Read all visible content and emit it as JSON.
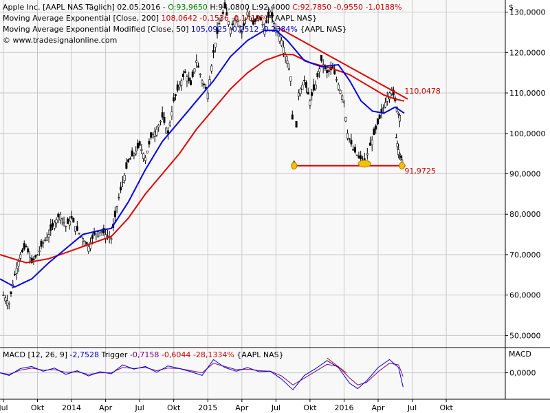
{
  "chart_data": [
    {
      "type": "candlestick",
      "legend": [
        {
          "text": "Apple Inc. [AAPL NAS  Täglich] 02.05.2016 - ",
          "color": "#000000",
          "parts": [
            {
              "text": "O:93,9650",
              "color": "#008000"
            },
            {
              "text": " H:94,0800 L:92,4000 ",
              "color": "#000000"
            },
            {
              "text": "C:92,7850 -0,9550 -1,0188%",
              "color": "#cc0000"
            }
          ]
        },
        {
          "text": "Moving Average Exponential [Close, 200] ",
          "color": "#000000",
          "parts": [
            {
              "text": "108,0642 -0,1536 -0,1419%",
              "color": "#cc0000"
            },
            {
              "text": " {AAPL NAS}",
              "color": "#000000"
            }
          ]
        },
        {
          "text": "Moving Average Exponential Modified [Close, 50] ",
          "color": "#000000",
          "parts": [
            {
              "text": "105,0925 -0,2512 -0,2384%",
              "color": "#0000cc"
            },
            {
              "text": " {AAPL NAS}",
              "color": "#000000"
            }
          ]
        },
        {
          "text": "© www.tradesignalonline.com",
          "color": "#000000",
          "parts": []
        }
      ],
      "currency_label": "$",
      "y_ticks": [
        "130,0000",
        "120,0000",
        "110,0000",
        "100,0000",
        "90,0000",
        "80,0000",
        "70,0000",
        "60,0000",
        "50,0000"
      ],
      "y_tick_values": [
        130,
        120,
        110,
        100,
        90,
        80,
        70,
        60,
        50
      ],
      "ylim": [
        47,
        133
      ],
      "x_ticks": [
        "Jul",
        "Okt",
        "2014",
        "Apr",
        "Jul",
        "Okt",
        "2015",
        "Apr",
        "Jul",
        "Okt",
        "2016",
        "Apr",
        "Jul",
        "Okt"
      ],
      "x_tick_values": [
        0,
        3,
        6,
        9,
        12,
        15,
        18,
        21,
        24,
        27,
        30,
        33,
        36,
        39
      ],
      "xlim": [
        -0.3,
        44.2
      ],
      "x_unit": "months since Jul 2013",
      "price_path": [
        [
          0,
          60
        ],
        [
          0.5,
          58
        ],
        [
          1,
          65
        ],
        [
          1.5,
          70
        ],
        [
          2,
          72
        ],
        [
          2.5,
          68
        ],
        [
          3,
          70
        ],
        [
          3.5,
          73
        ],
        [
          4,
          75
        ],
        [
          4.5,
          78
        ],
        [
          5,
          80
        ],
        [
          5.5,
          77
        ],
        [
          6,
          79
        ],
        [
          6.5,
          76
        ],
        [
          7,
          74
        ],
        [
          7.5,
          72
        ],
        [
          8,
          75
        ],
        [
          8.5,
          76
        ],
        [
          9,
          75
        ],
        [
          9.5,
          74
        ],
        [
          10,
          82
        ],
        [
          10.5,
          88
        ],
        [
          11,
          93
        ],
        [
          11.5,
          95
        ],
        [
          12,
          97
        ],
        [
          12.5,
          94
        ],
        [
          13,
          99
        ],
        [
          13.5,
          101
        ],
        [
          14,
          104
        ],
        [
          14.5,
          100
        ],
        [
          15,
          108
        ],
        [
          15.5,
          112
        ],
        [
          16,
          115
        ],
        [
          16.5,
          112
        ],
        [
          17,
          118
        ],
        [
          17.5,
          113
        ],
        [
          18,
          110
        ],
        [
          18.5,
          120
        ],
        [
          19,
          127
        ],
        [
          19.5,
          131
        ],
        [
          20,
          126
        ],
        [
          20.5,
          129
        ],
        [
          21,
          125
        ],
        [
          21.5,
          130
        ],
        [
          22,
          127
        ],
        [
          22.5,
          129
        ],
        [
          23,
          126
        ],
        [
          23.5,
          130
        ],
        [
          24,
          126
        ],
        [
          24.5,
          123
        ],
        [
          25,
          118
        ],
        [
          25.3,
          114
        ],
        [
          25.6,
          93
        ],
        [
          26,
          110
        ],
        [
          26.5,
          113
        ],
        [
          27,
          108
        ],
        [
          27.5,
          112
        ],
        [
          28,
          118
        ],
        [
          28.5,
          115
        ],
        [
          29,
          116
        ],
        [
          29.5,
          112
        ],
        [
          30,
          108
        ],
        [
          30.3,
          100
        ],
        [
          30.8,
          96
        ],
        [
          31.3,
          94
        ],
        [
          31.8,
          93
        ],
        [
          32.3,
          97
        ],
        [
          32.8,
          101
        ],
        [
          33.3,
          105
        ],
        [
          33.8,
          109
        ],
        [
          34.2,
          111
        ],
        [
          34.5,
          108
        ],
        [
          34.8,
          105
        ],
        [
          35,
          104
        ]
      ],
      "price_path_2": [
        [
          34.6,
          99
        ],
        [
          34.8,
          96
        ],
        [
          35,
          94
        ],
        [
          35.2,
          93
        ]
      ],
      "ema200": [
        [
          -0.3,
          70
        ],
        [
          2,
          68
        ],
        [
          4,
          69
        ],
        [
          6,
          71
        ],
        [
          8,
          73
        ],
        [
          9.5,
          74.5
        ],
        [
          11,
          79
        ],
        [
          12.5,
          85
        ],
        [
          14,
          90
        ],
        [
          15.5,
          95
        ],
        [
          17,
          101
        ],
        [
          18.5,
          106
        ],
        [
          20,
          111
        ],
        [
          21.5,
          115
        ],
        [
          23,
          118
        ],
        [
          24.5,
          119.5
        ],
        [
          25.5,
          119.5
        ],
        [
          27,
          117.5
        ],
        [
          29,
          116
        ],
        [
          30.5,
          114.5
        ],
        [
          32,
          112
        ],
        [
          33.5,
          109.5
        ],
        [
          34.5,
          108.5
        ],
        [
          35.3,
          108
        ]
      ],
      "ema50": [
        [
          -0.3,
          64
        ],
        [
          1,
          62
        ],
        [
          2.5,
          64
        ],
        [
          4,
          68
        ],
        [
          5.5,
          71.5
        ],
        [
          7,
          75
        ],
        [
          8.5,
          76
        ],
        [
          9.5,
          76.5
        ],
        [
          11,
          83
        ],
        [
          12.5,
          91
        ],
        [
          14,
          98
        ],
        [
          15.5,
          103
        ],
        [
          17,
          108
        ],
        [
          18.5,
          113
        ],
        [
          20,
          119
        ],
        [
          21.5,
          123
        ],
        [
          23,
          125.5
        ],
        [
          24,
          125.5
        ],
        [
          25,
          123
        ],
        [
          26.5,
          118
        ],
        [
          28,
          116.5
        ],
        [
          29.5,
          117
        ],
        [
          30.5,
          113
        ],
        [
          31.5,
          108
        ],
        [
          32.5,
          105.5
        ],
        [
          33.5,
          105
        ],
        [
          34.5,
          106.5
        ],
        [
          35.3,
          105
        ]
      ],
      "trendline": {
        "from": [
          24.3,
          126
        ],
        "to": [
          35.6,
          108.5
        ]
      },
      "support_line": {
        "from": [
          25.6,
          92
        ],
        "to": [
          35.4,
          92
        ]
      },
      "markers": [
        [
          25.6,
          92
        ],
        [
          31.8,
          92.5
        ],
        [
          35.1,
          92
        ]
      ],
      "annotations": [
        {
          "text": "110,0478",
          "x": 35.2,
          "y": 110.5,
          "color": "#cc0000"
        },
        {
          "text": "91,9725",
          "x": 35.2,
          "y": 90.8,
          "color": "#cc0000"
        }
      ]
    },
    {
      "type": "line",
      "legend_parts": [
        {
          "text": "MACD [12, 26, 9] ",
          "color": "#000000"
        },
        {
          "text": "-2,7528",
          "color": "#0000cc"
        },
        {
          "text": " Trigger ",
          "color": "#000000"
        },
        {
          "text": "-0,7158",
          "color": "#800080"
        },
        {
          "text": " -0,6044 -28,1334%",
          "color": "#cc0000"
        },
        {
          "text": " {AAPL NAS}",
          "color": "#000000"
        }
      ],
      "axis_label": "MACD",
      "y_ticks": [
        "0,0000"
      ],
      "y_tick_values": [
        0
      ],
      "ylim": [
        -5,
        4.5
      ],
      "macd": [
        [
          -0.3,
          0
        ],
        [
          0.5,
          -0.5
        ],
        [
          1.5,
          0.8
        ],
        [
          2.5,
          1.2
        ],
        [
          3.5,
          0.3
        ],
        [
          4.5,
          0.9
        ],
        [
          5.5,
          -0.3
        ],
        [
          6.5,
          0.4
        ],
        [
          7.5,
          -0.6
        ],
        [
          8.5,
          0.2
        ],
        [
          9.5,
          -0.2
        ],
        [
          10.5,
          1.5
        ],
        [
          11.5,
          0.7
        ],
        [
          12.5,
          1.2
        ],
        [
          13.5,
          0.1
        ],
        [
          14.5,
          1.3
        ],
        [
          15.5,
          0.8
        ],
        [
          16.5,
          0.2
        ],
        [
          17.5,
          -0.5
        ],
        [
          18.5,
          2.5
        ],
        [
          19.5,
          1.0
        ],
        [
          20.5,
          0.3
        ],
        [
          21.5,
          1.0
        ],
        [
          22.5,
          0.2
        ],
        [
          23.5,
          0.3
        ],
        [
          24.5,
          -1.2
        ],
        [
          25.5,
          -3.2
        ],
        [
          26.5,
          -0.5
        ],
        [
          27.5,
          0.8
        ],
        [
          28.5,
          2.3
        ],
        [
          29.5,
          1.0
        ],
        [
          30.5,
          -2.0
        ],
        [
          31.2,
          -3.0
        ],
        [
          32,
          -1.5
        ],
        [
          33,
          1.0
        ],
        [
          34,
          2.5
        ],
        [
          34.8,
          1.0
        ],
        [
          35.2,
          -2.7
        ]
      ],
      "trigger": [
        [
          -0.3,
          0
        ],
        [
          0.5,
          -0.3
        ],
        [
          1.5,
          0.5
        ],
        [
          2.5,
          0.9
        ],
        [
          3.5,
          0.5
        ],
        [
          4.5,
          0.6
        ],
        [
          5.5,
          0.1
        ],
        [
          6.5,
          0.2
        ],
        [
          7.5,
          -0.3
        ],
        [
          8.5,
          0
        ],
        [
          9.5,
          0
        ],
        [
          10.5,
          1.0
        ],
        [
          11.5,
          0.8
        ],
        [
          12.5,
          1.0
        ],
        [
          13.5,
          0.4
        ],
        [
          14.5,
          0.9
        ],
        [
          15.5,
          0.8
        ],
        [
          16.5,
          0.4
        ],
        [
          17.5,
          0
        ],
        [
          18.5,
          1.8
        ],
        [
          19.5,
          1.2
        ],
        [
          20.5,
          0.6
        ],
        [
          21.5,
          0.7
        ],
        [
          22.5,
          0.4
        ],
        [
          23.5,
          0.3
        ],
        [
          24.5,
          -0.6
        ],
        [
          25.5,
          -2.3
        ],
        [
          26.5,
          -1.0
        ],
        [
          27.5,
          0.3
        ],
        [
          28.5,
          1.6
        ],
        [
          29.5,
          1.2
        ],
        [
          30.5,
          -1.0
        ],
        [
          31.2,
          -2.3
        ],
        [
          32,
          -1.8
        ],
        [
          33,
          0.2
        ],
        [
          34,
          1.8
        ],
        [
          34.8,
          1.5
        ],
        [
          35.2,
          -0.7
        ]
      ],
      "trendline": {
        "from": [
          28.5,
          2.8
        ],
        "to": [
          30.2,
          0
        ]
      }
    }
  ]
}
